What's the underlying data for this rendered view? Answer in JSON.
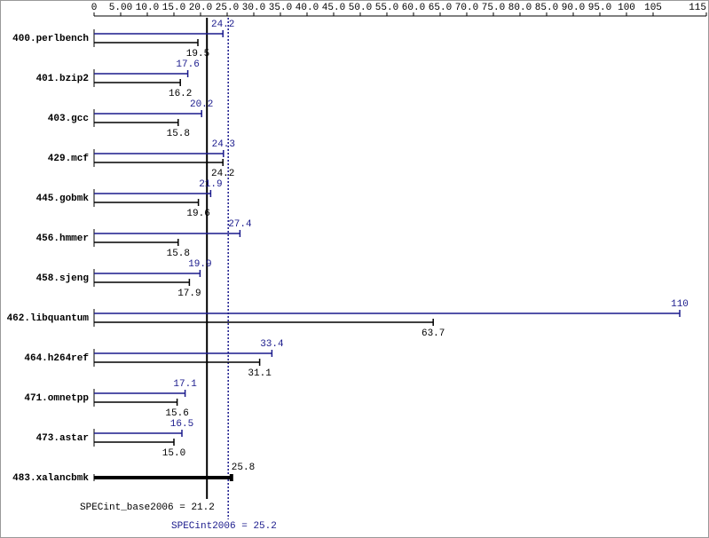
{
  "chart_data": {
    "type": "hbar",
    "categories": [
      "400.perlbench",
      "401.bzip2",
      "403.gcc",
      "429.mcf",
      "445.gobmk",
      "456.hmmer",
      "458.sjeng",
      "462.libquantum",
      "464.h264ref",
      "471.omnetpp",
      "473.astar",
      "483.xalancbmk"
    ],
    "series": [
      {
        "color": "#1a1a8c",
        "values": [
          24.2,
          17.6,
          20.2,
          24.3,
          21.9,
          27.4,
          19.9,
          110,
          33.4,
          17.1,
          16.5,
          null
        ],
        "value_labels": [
          "24.2",
          "17.6",
          "20.2",
          "24.3",
          "21.9",
          "27.4",
          "19.9",
          "110",
          "33.4",
          "17.1",
          "16.5",
          null
        ]
      },
      {
        "color": "#000000",
        "values": [
          19.5,
          16.2,
          15.8,
          24.2,
          19.6,
          15.8,
          17.9,
          63.7,
          31.1,
          15.6,
          15.0,
          25.8
        ],
        "value_labels": [
          "19.5",
          "16.2",
          "15.8",
          "24.2",
          "19.6",
          "15.8",
          "17.9",
          "63.7",
          "31.1",
          "15.6",
          "15.0",
          "25.8"
        ]
      }
    ],
    "xlim": [
      0,
      115
    ],
    "xticks": [
      0,
      {
        "value": 5,
        "label": "5.00"
      },
      {
        "value": 10,
        "label": "10.0"
      },
      {
        "value": 15,
        "label": "15.0"
      },
      {
        "value": 20,
        "label": "20.0"
      },
      {
        "value": 25,
        "label": "25.0"
      },
      {
        "value": 30,
        "label": "30.0"
      },
      {
        "value": 35,
        "label": "35.0"
      },
      {
        "value": 40,
        "label": "40.0"
      },
      {
        "value": 45,
        "label": "45.0"
      },
      {
        "value": 50,
        "label": "50.0"
      },
      {
        "value": 55,
        "label": "55.0"
      },
      {
        "value": 60,
        "label": "60.0"
      },
      {
        "value": 65,
        "label": "65.0"
      },
      {
        "value": 70,
        "label": "70.0"
      },
      {
        "value": 75,
        "label": "75.0"
      },
      {
        "value": 80,
        "label": "80.0"
      },
      {
        "value": 85,
        "label": "85.0"
      },
      {
        "value": 90,
        "label": "90.0"
      },
      {
        "value": 95,
        "label": "95.0"
      },
      100,
      105,
      115
    ],
    "base_score_label": "SPECint_base2006 =",
    "base_score": 21.2,
    "peak_score_label": "SPECint2006 =",
    "peak_score": 25.2
  }
}
